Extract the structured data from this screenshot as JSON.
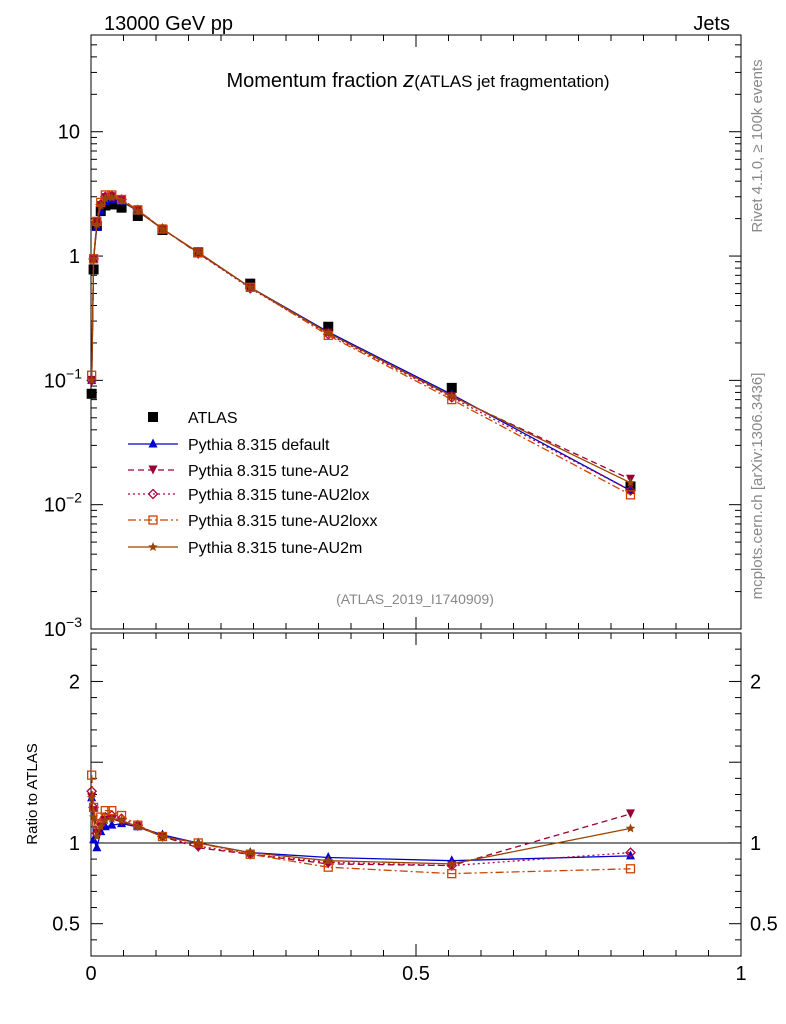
{
  "header": {
    "beam": "13000 GeV pp",
    "category": "Jets",
    "title_main": "Momentum fraction ",
    "title_z": "z",
    "title_sub": "(ATLAS jet fragmentation)",
    "side_rivet": "Rivet 4.1.0, ≥ 100k events",
    "side_mcplots": "mcplots.cern.ch [arXiv:1306.3436]",
    "analysis_id": "(ATLAS_2019_I1740909)",
    "ratio_ylabel": "Ratio to ATLAS"
  },
  "colors": {
    "ATLAS": "#000000",
    "default": "#0000cc",
    "AU2": "#990033",
    "AU2lox": "#b3003b",
    "AU2loxx": "#cc4400",
    "AU2m": "#994400"
  },
  "chart_data": [
    {
      "type": "line",
      "yscale": "log",
      "xlim": [
        0,
        1
      ],
      "ylim": [
        0.001,
        60
      ],
      "y_ticks": [
        {
          "value": 10,
          "label": "10"
        },
        {
          "value": 1,
          "label": "1"
        },
        {
          "value": 0.1,
          "label": "10",
          "exp": "−1"
        },
        {
          "value": 0.01,
          "label": "10",
          "exp": "−2"
        },
        {
          "value": 0.001,
          "label": "10",
          "exp": "−3"
        }
      ],
      "x": [
        0.001,
        0.004,
        0.009,
        0.015,
        0.022,
        0.032,
        0.047,
        0.072,
        0.11,
        0.165,
        0.245,
        0.365,
        0.555,
        0.83
      ],
      "series": [
        {
          "name": "ATLAS",
          "key": "ATLAS",
          "style": "data",
          "marker": "square",
          "values": [
            0.078,
            0.78,
            1.75,
            2.3,
            2.55,
            2.6,
            2.45,
            2.1,
            1.62,
            1.07,
            0.6,
            0.27,
            0.087,
            0.014
          ]
        },
        {
          "name": "Pythia 8.315 default",
          "key": "default",
          "dash": "",
          "marker": "triangle-up",
          "values": [
            0.1,
            0.95,
            1.7,
            2.3,
            2.75,
            2.85,
            2.75,
            2.3,
            1.65,
            1.07,
            0.56,
            0.245,
            0.077,
            0.013
          ]
        },
        {
          "name": "Pythia 8.315 tune-AU2",
          "key": "AU2",
          "dash": "6,4",
          "marker": "triangle-down",
          "values": [
            0.1,
            0.95,
            1.85,
            2.55,
            2.95,
            3.0,
            2.8,
            2.35,
            1.65,
            1.05,
            0.56,
            0.24,
            0.074,
            0.016
          ]
        },
        {
          "name": "Pythia 8.315 tune-AU2lox",
          "key": "AU2lox",
          "dash": "2,3",
          "marker": "diamond",
          "values": [
            0.1,
            0.95,
            1.85,
            2.6,
            3.0,
            3.05,
            2.85,
            2.35,
            1.66,
            1.05,
            0.55,
            0.235,
            0.073,
            0.013
          ]
        },
        {
          "name": "Pythia 8.315 tune-AU2loxx",
          "key": "AU2loxx",
          "dash": "8,3,2,3",
          "marker": "square-open",
          "values": [
            0.11,
            0.95,
            1.9,
            2.7,
            3.1,
            3.1,
            2.85,
            2.35,
            1.65,
            1.06,
            0.56,
            0.23,
            0.07,
            0.012
          ]
        },
        {
          "name": "Pythia 8.315 tune-AU2m",
          "key": "AU2m",
          "dash": "",
          "marker": "star",
          "values": [
            0.1,
            0.95,
            1.8,
            2.55,
            2.9,
            2.95,
            2.8,
            2.3,
            1.65,
            1.07,
            0.56,
            0.24,
            0.075,
            0.015
          ]
        }
      ]
    },
    {
      "type": "line",
      "yscale": "linear",
      "xlim": [
        0,
        1
      ],
      "ylim": [
        0.3,
        2.3
      ],
      "x_ticks": [
        {
          "value": 0,
          "label": "0"
        },
        {
          "value": 0.5,
          "label": "0.5"
        },
        {
          "value": 1,
          "label": "1"
        }
      ],
      "y_ticks": [
        {
          "value": 2,
          "label": "2"
        },
        {
          "value": 1,
          "label": "1"
        },
        {
          "value": 0.5,
          "label": "0.5"
        }
      ],
      "x": [
        0.001,
        0.004,
        0.009,
        0.015,
        0.022,
        0.032,
        0.047,
        0.072,
        0.11,
        0.165,
        0.245,
        0.365,
        0.555,
        0.83
      ],
      "series": [
        {
          "name": "Pythia 8.315 default",
          "key": "default",
          "dash": "",
          "marker": "triangle-up",
          "values": [
            1.28,
            1.02,
            0.97,
            1.07,
            1.1,
            1.11,
            1.12,
            1.1,
            1.05,
            1.0,
            0.94,
            0.91,
            0.89,
            0.92
          ]
        },
        {
          "name": "Pythia 8.315 tune-AU2",
          "key": "AU2",
          "dash": "6,4",
          "marker": "triangle-down",
          "values": [
            1.28,
            1.2,
            1.06,
            1.1,
            1.14,
            1.15,
            1.13,
            1.1,
            1.04,
            0.97,
            0.93,
            0.87,
            0.86,
            1.18
          ]
        },
        {
          "name": "Pythia 8.315 tune-AU2lox",
          "key": "AU2lox",
          "dash": "2,3",
          "marker": "diamond",
          "values": [
            1.32,
            1.22,
            1.06,
            1.12,
            1.16,
            1.17,
            1.15,
            1.11,
            1.04,
            0.98,
            0.93,
            0.88,
            0.86,
            0.94
          ]
        },
        {
          "name": "Pythia 8.315 tune-AU2loxx",
          "key": "AU2loxx",
          "dash": "8,3,2,3",
          "marker": "square-open",
          "values": [
            1.42,
            1.22,
            1.12,
            1.16,
            1.2,
            1.2,
            1.17,
            1.11,
            1.04,
            1.0,
            0.93,
            0.85,
            0.81,
            0.84
          ]
        },
        {
          "name": "Pythia 8.315 tune-AU2m",
          "key": "AU2m",
          "dash": "",
          "marker": "star",
          "values": [
            1.28,
            1.16,
            1.04,
            1.1,
            1.14,
            1.15,
            1.14,
            1.1,
            1.04,
            1.0,
            0.94,
            0.89,
            0.87,
            1.09
          ]
        }
      ]
    }
  ]
}
